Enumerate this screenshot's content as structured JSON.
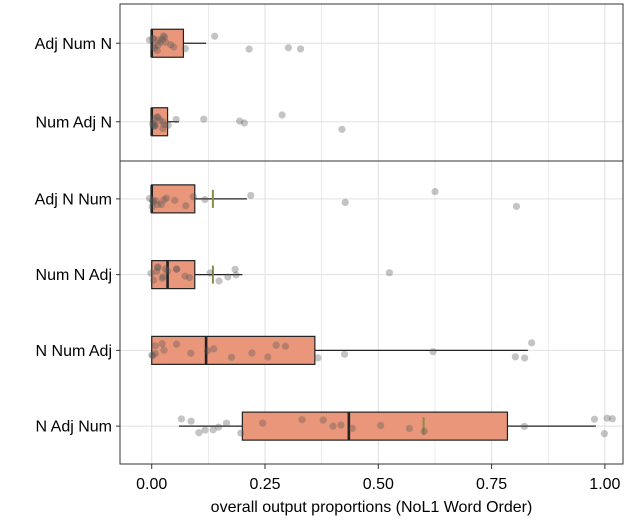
{
  "chart_data": {
    "type": "boxplot",
    "xlabel": "overall output proportions (NoL1 Word Order)",
    "xlim": [
      -0.07,
      1.04
    ],
    "xticks": [
      0.0,
      0.25,
      0.5,
      0.75,
      1.0
    ],
    "xtick_labels": [
      "0.00",
      "0.25",
      "0.50",
      "0.75",
      "1.00"
    ],
    "grid": true,
    "colors": {
      "box_fill": "#e9967a",
      "outline": "#222222",
      "points": "#555555",
      "mean_marker": "#8b8b4a",
      "grid": "#e0e0e0",
      "panel_border": "#333333"
    },
    "panels": [
      {
        "categories": [
          {
            "label": "Adj Num N",
            "box": {
              "whisker_low": 0.0,
              "q1": 0.0,
              "median": 0.0,
              "q3": 0.07,
              "whisker_high": 0.12
            },
            "mean": null,
            "points": [
              0.0,
              0.0,
              0.0,
              0.005,
              0.008,
              0.01,
              0.012,
              0.015,
              0.018,
              0.02,
              0.025,
              0.028,
              0.03,
              0.04,
              0.05,
              0.08,
              0.14,
              0.22,
              0.3,
              0.33
            ]
          },
          {
            "label": "Num Adj N",
            "box": {
              "whisker_low": 0.0,
              "q1": 0.0,
              "median": 0.0,
              "q3": 0.035,
              "whisker_high": 0.06
            },
            "mean": null,
            "points": [
              0.0,
              0.0,
              0.0,
              0.003,
              0.006,
              0.01,
              0.012,
              0.015,
              0.02,
              0.022,
              0.025,
              0.03,
              0.04,
              0.05,
              0.12,
              0.19,
              0.21,
              0.29,
              0.42
            ]
          }
        ]
      },
      {
        "categories": [
          {
            "label": "Adj N Num",
            "box": {
              "whisker_low": 0.0,
              "q1": 0.0,
              "median": 0.0,
              "q3": 0.095,
              "whisker_high": 0.21
            },
            "mean": 0.135,
            "points": [
              0.0,
              0.0,
              0.003,
              0.006,
              0.01,
              0.015,
              0.02,
              0.025,
              0.03,
              0.05,
              0.08,
              0.09,
              0.12,
              0.22,
              0.43,
              0.63,
              0.8
            ]
          },
          {
            "label": "Num N Adj",
            "box": {
              "whisker_low": 0.0,
              "q1": 0.0,
              "median": 0.035,
              "q3": 0.095,
              "whisker_high": 0.2
            },
            "mean": 0.135,
            "points": [
              0.0,
              0.0,
              0.005,
              0.01,
              0.015,
              0.02,
              0.025,
              0.03,
              0.04,
              0.05,
              0.06,
              0.07,
              0.08,
              0.13,
              0.15,
              0.17,
              0.18,
              0.19,
              0.52
            ]
          },
          {
            "label": "N Num Adj",
            "box": {
              "whisker_low": 0.0,
              "q1": 0.0,
              "median": 0.12,
              "q3": 0.36,
              "whisker_high": 0.83
            },
            "mean": null,
            "points": [
              0.0,
              0.0,
              0.005,
              0.01,
              0.02,
              0.03,
              0.06,
              0.09,
              0.12,
              0.14,
              0.18,
              0.22,
              0.26,
              0.28,
              0.3,
              0.37,
              0.43,
              0.62,
              0.8,
              0.82,
              0.84
            ]
          },
          {
            "label": "N Adj Num",
            "box": {
              "whisker_low": 0.06,
              "q1": 0.2,
              "median": 0.435,
              "q3": 0.785,
              "whisker_high": 0.98
            },
            "mean": 0.6,
            "points": [
              0.06,
              0.09,
              0.1,
              0.12,
              0.13,
              0.15,
              0.17,
              0.2,
              0.25,
              0.33,
              0.38,
              0.4,
              0.42,
              0.44,
              0.5,
              0.57,
              0.6,
              0.82,
              0.98,
              1.0,
              1.01,
              1.02
            ]
          }
        ]
      }
    ]
  }
}
